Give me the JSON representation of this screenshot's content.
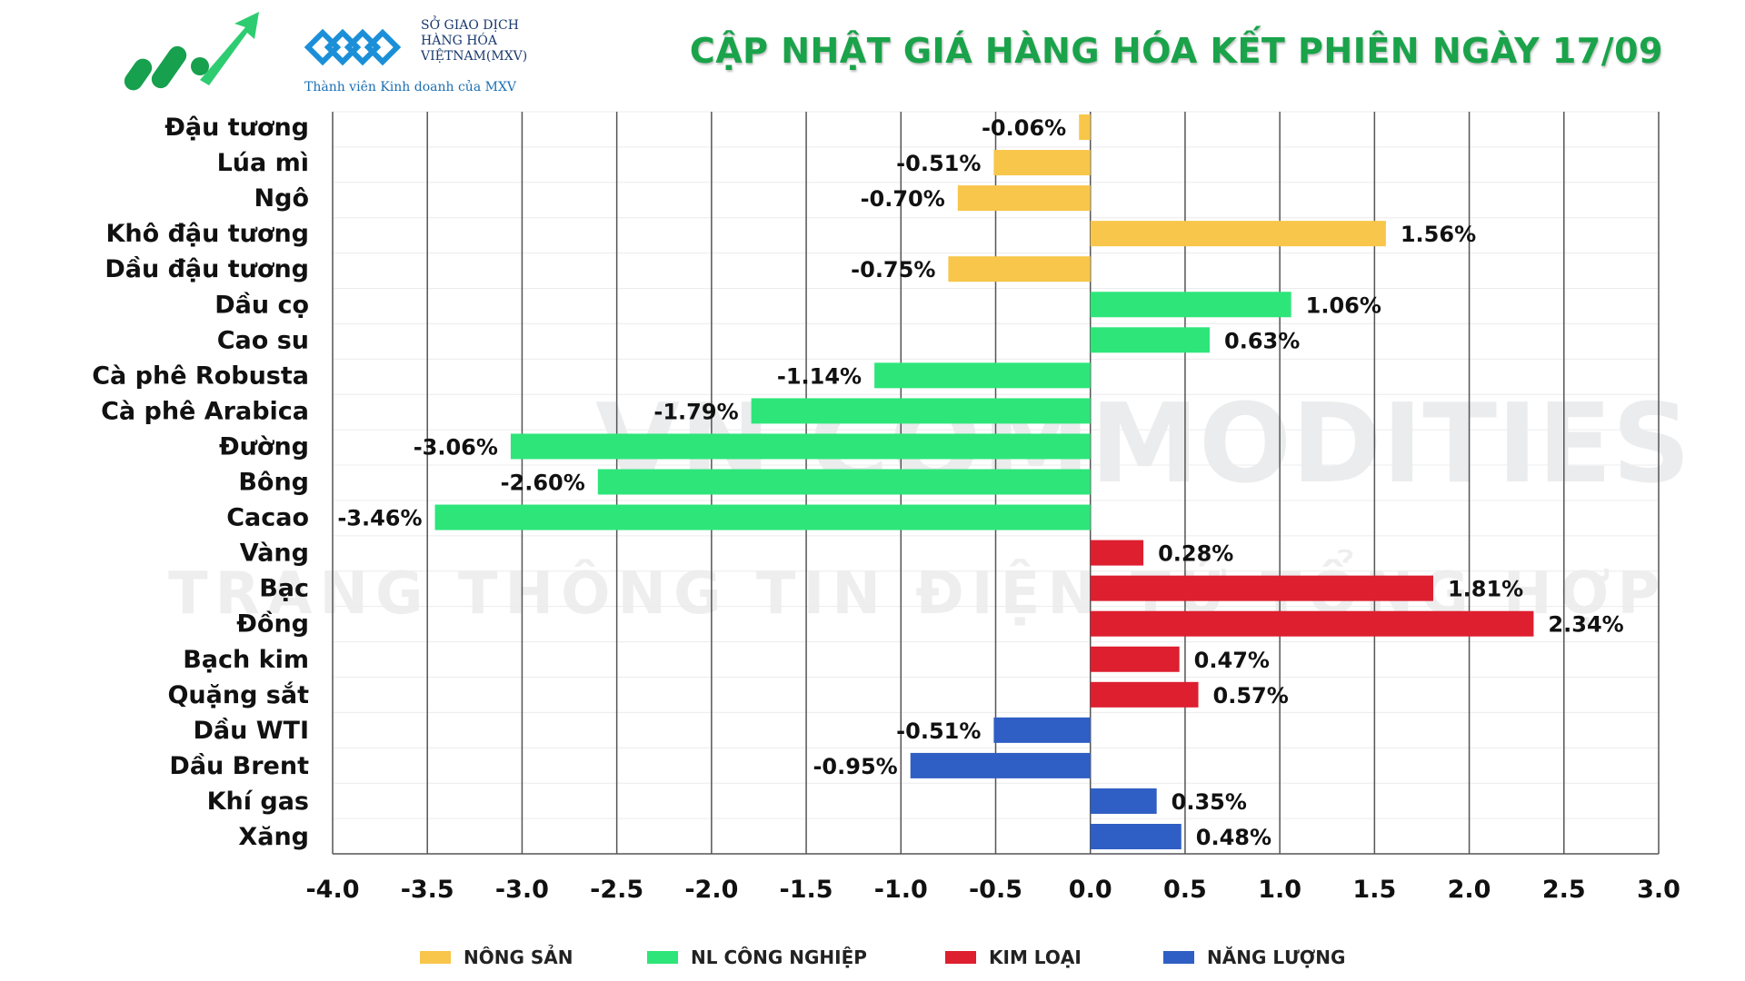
{
  "header": {
    "title": "CẬP NHẬT GIÁ HÀNG HÓA KẾT PHIÊN NGÀY 17/09",
    "exchange_lines": [
      "SỞ GIAO DỊCH",
      "HÀNG HÓA",
      "VIỆTNAM(MXV)"
    ],
    "exchange_sub": "Thành viên Kinh doanh của MXV"
  },
  "watermark": {
    "line1": "VN COMMODITIES",
    "line2": "TRANG THÔNG TIN ĐIỆN TỬ TỔNG HỢP"
  },
  "colors": {
    "nong_san": "#f7c64a",
    "nl_cong_nghiep": "#2ee57a",
    "kim_loai": "#dd1f2f",
    "nang_luong": "#2f5fc4",
    "title": "#1aa34a"
  },
  "chart_data": {
    "type": "bar",
    "orientation": "horizontal",
    "title": "CẬP NHẬT GIÁ HÀNG HÓA KẾT PHIÊN NGÀY 17/09",
    "xlabel": "",
    "ylabel": "",
    "xlim": [
      -4.0,
      3.0
    ],
    "xticks": [
      "-4.0",
      "-3.5",
      "-3.0",
      "-2.5",
      "-2.0",
      "-1.5",
      "-1.0",
      "-0.5",
      "0.0",
      "0.5",
      "1.0",
      "1.5",
      "2.0",
      "2.5",
      "3.0"
    ],
    "grid": "vertical",
    "legend_position": "bottom",
    "groups": [
      {
        "key": "nong_san",
        "name": "NÔNG SẢN"
      },
      {
        "key": "nl_cong_nghiep",
        "name": "NL CÔNG NGHIỆP"
      },
      {
        "key": "kim_loai",
        "name": "KIM LOẠI"
      },
      {
        "key": "nang_luong",
        "name": "NĂNG LƯỢNG"
      }
    ],
    "items": [
      {
        "name": "Đậu tương",
        "value": -0.06,
        "label": "-0.06%",
        "group": "nong_san"
      },
      {
        "name": "Lúa mì",
        "value": -0.51,
        "label": "-0.51%",
        "group": "nong_san"
      },
      {
        "name": "Ngô",
        "value": -0.7,
        "label": "-0.70%",
        "group": "nong_san"
      },
      {
        "name": "Khô đậu tương",
        "value": 1.56,
        "label": "1.56%",
        "group": "nong_san"
      },
      {
        "name": "Dầu đậu tương",
        "value": -0.75,
        "label": "-0.75%",
        "group": "nong_san"
      },
      {
        "name": "Dầu cọ",
        "value": 1.06,
        "label": "1.06%",
        "group": "nl_cong_nghiep"
      },
      {
        "name": "Cao su",
        "value": 0.63,
        "label": "0.63%",
        "group": "nl_cong_nghiep"
      },
      {
        "name": "Cà phê Robusta",
        "value": -1.14,
        "label": "-1.14%",
        "group": "nl_cong_nghiep"
      },
      {
        "name": "Cà phê Arabica",
        "value": -1.79,
        "label": "-1.79%",
        "group": "nl_cong_nghiep"
      },
      {
        "name": "Đường",
        "value": -3.06,
        "label": "-3.06%",
        "group": "nl_cong_nghiep"
      },
      {
        "name": "Bông",
        "value": -2.6,
        "label": "-2.60%",
        "group": "nl_cong_nghiep"
      },
      {
        "name": "Cacao",
        "value": -3.46,
        "label": "-3.46%",
        "group": "nl_cong_nghiep"
      },
      {
        "name": "Vàng",
        "value": 0.28,
        "label": "0.28%",
        "group": "kim_loai"
      },
      {
        "name": "Bạc",
        "value": 1.81,
        "label": "1.81%",
        "group": "kim_loai"
      },
      {
        "name": "Đồng",
        "value": 2.34,
        "label": "2.34%",
        "group": "kim_loai"
      },
      {
        "name": "Bạch kim",
        "value": 0.47,
        "label": "0.47%",
        "group": "kim_loai"
      },
      {
        "name": "Quặng sắt",
        "value": 0.57,
        "label": "0.57%",
        "group": "kim_loai"
      },
      {
        "name": "Dầu WTI",
        "value": -0.51,
        "label": "-0.51%",
        "group": "nang_luong"
      },
      {
        "name": "Dầu Brent",
        "value": -0.95,
        "label": "-0.95%",
        "group": "nang_luong"
      },
      {
        "name": "Khí gas",
        "value": 0.35,
        "label": "0.35%",
        "group": "nang_luong"
      },
      {
        "name": "Xăng",
        "value": 0.48,
        "label": "0.48%",
        "group": "nang_luong"
      }
    ]
  }
}
